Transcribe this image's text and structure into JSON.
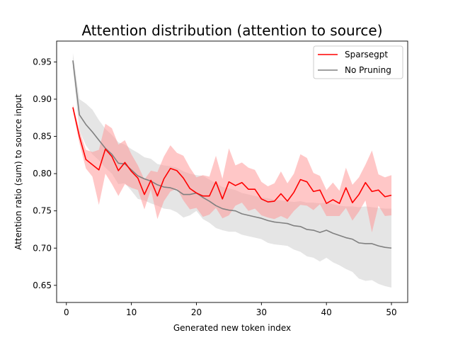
{
  "chart_data": {
    "type": "line",
    "title": "Attention distribution (attention to source)",
    "xlabel": "Generated new token index",
    "ylabel": "Attention ratio (sum) to source input",
    "xlim": [
      -1.5,
      52.5
    ],
    "ylim": [
      0.627,
      0.978
    ],
    "xticks": [
      0,
      10,
      20,
      30,
      40,
      50
    ],
    "yticks": [
      0.65,
      0.7,
      0.75,
      0.8,
      0.85,
      0.9,
      0.95
    ],
    "grid": false,
    "legend_position": "top-right",
    "x": [
      1,
      2,
      3,
      4,
      5,
      6,
      7,
      8,
      9,
      10,
      11,
      12,
      13,
      14,
      15,
      16,
      17,
      18,
      19,
      20,
      21,
      22,
      23,
      24,
      25,
      26,
      27,
      28,
      29,
      30,
      31,
      32,
      33,
      34,
      35,
      36,
      37,
      38,
      39,
      40,
      41,
      42,
      43,
      44,
      45,
      46,
      47,
      48,
      49,
      50
    ],
    "series": [
      {
        "name": "Sparsegpt",
        "color": "#ff0000",
        "band_color": "#ff9999",
        "values": [
          0.889,
          0.85,
          0.819,
          0.812,
          0.805,
          0.833,
          0.823,
          0.804,
          0.815,
          0.803,
          0.794,
          0.772,
          0.791,
          0.77,
          0.793,
          0.807,
          0.804,
          0.794,
          0.78,
          0.774,
          0.77,
          0.77,
          0.789,
          0.766,
          0.789,
          0.784,
          0.788,
          0.779,
          0.779,
          0.766,
          0.762,
          0.763,
          0.773,
          0.763,
          0.775,
          0.792,
          0.789,
          0.776,
          0.778,
          0.76,
          0.765,
          0.76,
          0.781,
          0.761,
          0.772,
          0.788,
          0.776,
          0.778,
          0.769,
          0.771
        ],
        "upper": [
          0.893,
          0.858,
          0.832,
          0.829,
          0.832,
          0.867,
          0.861,
          0.839,
          0.845,
          0.826,
          0.811,
          0.792,
          0.804,
          0.802,
          0.823,
          0.838,
          0.828,
          0.824,
          0.808,
          0.795,
          0.798,
          0.796,
          0.824,
          0.793,
          0.834,
          0.811,
          0.815,
          0.808,
          0.805,
          0.789,
          0.783,
          0.787,
          0.803,
          0.787,
          0.8,
          0.826,
          0.821,
          0.801,
          0.797,
          0.778,
          0.788,
          0.777,
          0.808,
          0.785,
          0.795,
          0.812,
          0.831,
          0.799,
          0.795,
          0.798
        ],
        "lower": [
          0.885,
          0.841,
          0.807,
          0.796,
          0.758,
          0.8,
          0.786,
          0.77,
          0.786,
          0.781,
          0.778,
          0.752,
          0.779,
          0.739,
          0.763,
          0.776,
          0.78,
          0.764,
          0.752,
          0.754,
          0.742,
          0.745,
          0.754,
          0.74,
          0.744,
          0.757,
          0.761,
          0.75,
          0.753,
          0.744,
          0.741,
          0.739,
          0.743,
          0.739,
          0.75,
          0.758,
          0.757,
          0.751,
          0.759,
          0.743,
          0.743,
          0.743,
          0.754,
          0.737,
          0.749,
          0.764,
          0.721,
          0.757,
          0.743,
          0.744
        ]
      },
      {
        "name": "No Pruning",
        "color": "#808080",
        "band_color": "#cccccc",
        "values": [
          0.952,
          0.879,
          0.866,
          0.856,
          0.845,
          0.834,
          0.826,
          0.814,
          0.813,
          0.805,
          0.797,
          0.793,
          0.79,
          0.785,
          0.782,
          0.781,
          0.778,
          0.772,
          0.772,
          0.774,
          0.768,
          0.763,
          0.757,
          0.753,
          0.751,
          0.75,
          0.746,
          0.744,
          0.742,
          0.74,
          0.737,
          0.735,
          0.734,
          0.733,
          0.73,
          0.729,
          0.725,
          0.724,
          0.721,
          0.724,
          0.72,
          0.717,
          0.714,
          0.712,
          0.707,
          0.706,
          0.706,
          0.703,
          0.701,
          0.7
        ],
        "upper": [
          0.962,
          0.9,
          0.894,
          0.886,
          0.872,
          0.86,
          0.852,
          0.842,
          0.839,
          0.833,
          0.828,
          0.822,
          0.82,
          0.813,
          0.811,
          0.81,
          0.808,
          0.803,
          0.8,
          0.798,
          0.797,
          0.792,
          0.787,
          0.782,
          0.78,
          0.778,
          0.774,
          0.772,
          0.77,
          0.768,
          0.767,
          0.765,
          0.764,
          0.763,
          0.762,
          0.763,
          0.761,
          0.761,
          0.76,
          0.761,
          0.759,
          0.757,
          0.756,
          0.756,
          0.755,
          0.756,
          0.755,
          0.754,
          0.753,
          0.753
        ],
        "lower": [
          0.942,
          0.858,
          0.838,
          0.826,
          0.818,
          0.808,
          0.8,
          0.786,
          0.787,
          0.777,
          0.766,
          0.764,
          0.76,
          0.757,
          0.753,
          0.752,
          0.748,
          0.741,
          0.744,
          0.75,
          0.739,
          0.734,
          0.727,
          0.724,
          0.722,
          0.722,
          0.718,
          0.716,
          0.714,
          0.712,
          0.707,
          0.705,
          0.704,
          0.703,
          0.698,
          0.695,
          0.689,
          0.687,
          0.682,
          0.687,
          0.681,
          0.677,
          0.672,
          0.668,
          0.659,
          0.656,
          0.657,
          0.652,
          0.649,
          0.647
        ]
      }
    ]
  }
}
